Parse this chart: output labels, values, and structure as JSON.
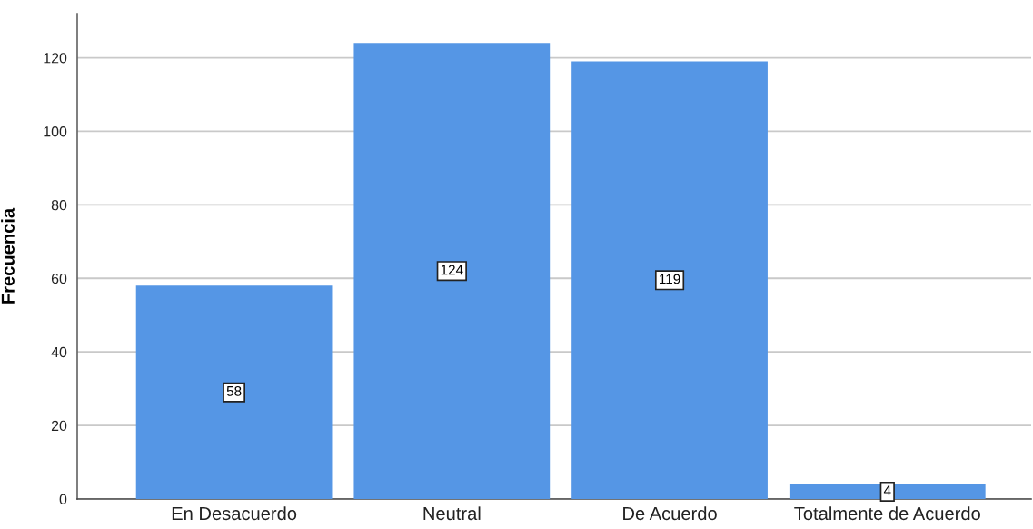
{
  "chart_data": {
    "type": "bar",
    "ylabel": "Frecuencia",
    "categories": [
      "En Desacuerdo",
      "Neutral",
      "De Acuerdo",
      "Totalmente de Acuerdo"
    ],
    "values": [
      58,
      124,
      119,
      4
    ],
    "color": "#5596e5",
    "ylim": [
      0,
      132
    ],
    "yticks": [
      0,
      20,
      40,
      60,
      80,
      100,
      120
    ],
    "grid": "y",
    "data_labels": true
  }
}
